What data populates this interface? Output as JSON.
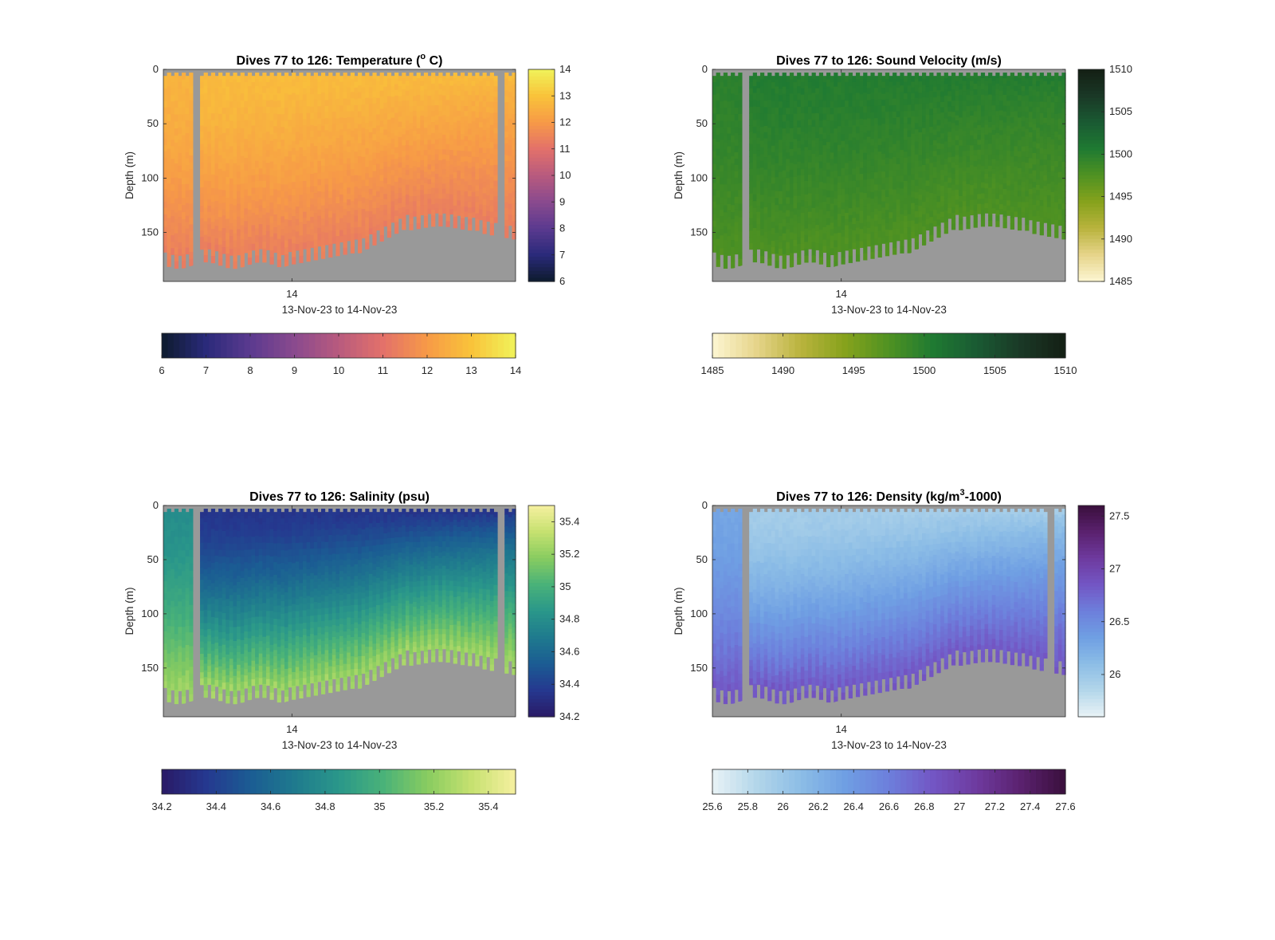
{
  "chart_data": [
    {
      "type": "heatmap",
      "title_main": "Dives 77 to 126: Temperature (",
      "title_sup": "o",
      "title_tail": " C)",
      "ylabel": "Depth (m)",
      "xlabel": "13-Nov-23 to 14-Nov-23",
      "x_ticks": [
        "14"
      ],
      "y_ticks": [
        0,
        50,
        100,
        150
      ],
      "ylim": [
        0,
        195
      ],
      "clim": [
        6,
        14
      ],
      "cbar_right_ticks": [
        "6",
        "7",
        "8",
        "9",
        "10",
        "11",
        "12",
        "13",
        "14"
      ],
      "cbar_bottom_ticks": [
        "6",
        "7",
        "8",
        "9",
        "10",
        "11",
        "12",
        "13",
        "14"
      ],
      "colormap": [
        "#0d1b2e",
        "#2a2a7a",
        "#5b3a8f",
        "#8a4a8e",
        "#b85a7e",
        "#e3716a",
        "#f79a47",
        "#f9c33a",
        "#f0f35a"
      ],
      "surface_value": 12.8,
      "bottom_value": 11.3,
      "left_value": 12.6,
      "gap_color": "#999999"
    },
    {
      "type": "heatmap",
      "title_main": "Dives 77 to 126: Sound Velocity (m/s)",
      "title_sup": "",
      "title_tail": "",
      "ylabel": "Depth (m)",
      "xlabel": "13-Nov-23 to 14-Nov-23",
      "x_ticks": [
        "14"
      ],
      "y_ticks": [
        0,
        50,
        100,
        150
      ],
      "ylim": [
        0,
        195
      ],
      "clim": [
        1485,
        1510
      ],
      "cbar_right_ticks": [
        "1485",
        "1490",
        "1495",
        "1500",
        "1505",
        "1510"
      ],
      "cbar_bottom_ticks": [
        "1485",
        "1490",
        "1495",
        "1500",
        "1505",
        "1510"
      ],
      "colormap": [
        "#fdf6d2",
        "#e6d48a",
        "#b9b33d",
        "#86a21c",
        "#4f9222",
        "#1f7a32",
        "#1a5a33",
        "#1a3826",
        "#141f14"
      ],
      "surface_value": 1500.3,
      "bottom_value": 1497.5,
      "left_value": 1499.8,
      "gap_color": "#999999"
    },
    {
      "type": "heatmap",
      "title_main": "Dives 77 to 126: Salinity (psu)",
      "title_sup": "",
      "title_tail": "",
      "ylabel": "Depth (m)",
      "xlabel": "13-Nov-23 to 14-Nov-23",
      "x_ticks": [
        "14"
      ],
      "y_ticks": [
        0,
        50,
        100,
        150
      ],
      "ylim": [
        0,
        195
      ],
      "clim": [
        34.2,
        35.5
      ],
      "cbar_right_ticks": [
        "34.2",
        "34.4",
        "34.6",
        "34.8",
        "35",
        "35.2",
        "35.4"
      ],
      "cbar_bottom_ticks": [
        "34.2",
        "34.4",
        "34.6",
        "34.8",
        "35",
        "35.2",
        "35.4"
      ],
      "colormap": [
        "#2a1a66",
        "#25388f",
        "#1b5c93",
        "#1f7a8e",
        "#2a978a",
        "#49b279",
        "#88cc60",
        "#c6e170",
        "#f6f0a0"
      ],
      "surface_value": 34.35,
      "bottom_value": 35.25,
      "left_value": 34.8,
      "gap_color": "#999999"
    },
    {
      "type": "heatmap",
      "title_main": "Dives 77 to 126: Density (kg/m",
      "title_sup": "3",
      "title_tail": "-1000)",
      "ylabel": "Depth (m)",
      "xlabel": "13-Nov-23 to 14-Nov-23",
      "x_ticks": [
        "14"
      ],
      "y_ticks": [
        0,
        50,
        100,
        150
      ],
      "ylim": [
        0,
        195
      ],
      "clim": [
        25.6,
        27.6
      ],
      "cbar_right_ticks": [
        "26",
        "26.5",
        "27",
        "27.5"
      ],
      "cbar_bottom_ticks": [
        "25.6",
        "25.8",
        "26",
        "26.2",
        "26.4",
        "26.6",
        "26.8",
        "27",
        "27.2",
        "27.4",
        "27.6"
      ],
      "colormap": [
        "#e9f3f6",
        "#b3d6ea",
        "#8cbde6",
        "#6f9fe3",
        "#6d7fdc",
        "#7356c4",
        "#6e3a9e",
        "#5a216e",
        "#3a0f3c"
      ],
      "surface_value": 25.95,
      "bottom_value": 26.85,
      "left_value": 26.3,
      "gap_color": "#999999"
    }
  ]
}
